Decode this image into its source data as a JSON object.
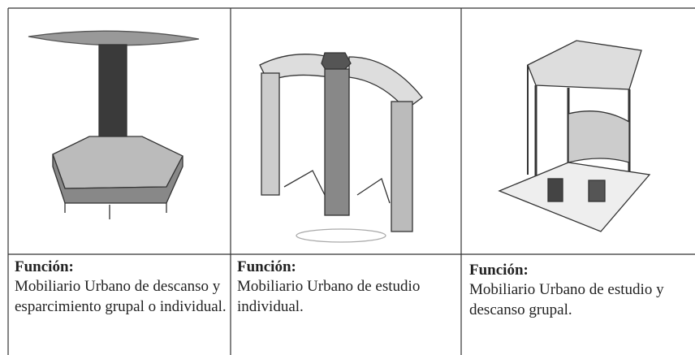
{
  "table": {
    "columns": [
      {
        "label": "Función:",
        "description": "Mobiliario Urbano de descanso y esparcimiento grupal o individual."
      },
      {
        "label": "Función:",
        "description": "Mobiliario Urbano de estudio individual."
      },
      {
        "label": "Función:",
        "description": "Mobiliario Urbano de estudio y descanso grupal."
      }
    ]
  }
}
